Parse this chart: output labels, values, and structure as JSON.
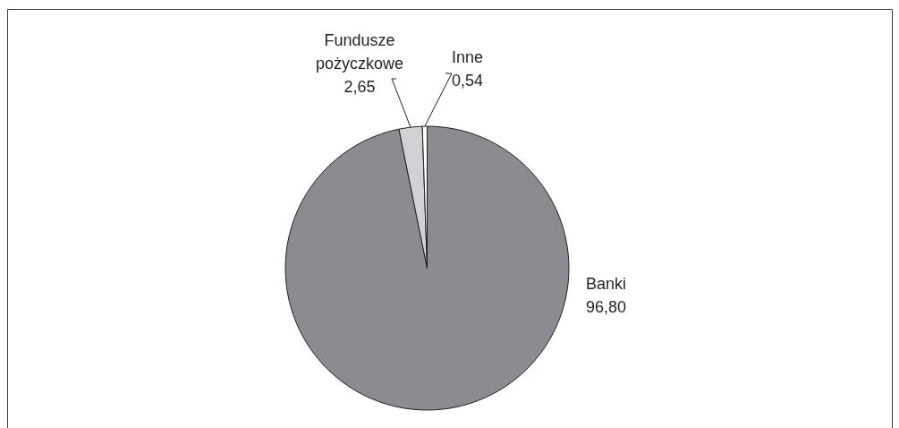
{
  "chart_data": {
    "type": "pie",
    "categories": [
      "Banki",
      "Fundusze pożyczkowe",
      "Inne"
    ],
    "values": [
      96.8,
      2.65,
      0.54
    ],
    "colors": [
      "#8b8c90",
      "#d1d2d4",
      "#ffffff"
    ],
    "value_labels": [
      "96,80",
      "2,65",
      "0,54"
    ]
  }
}
